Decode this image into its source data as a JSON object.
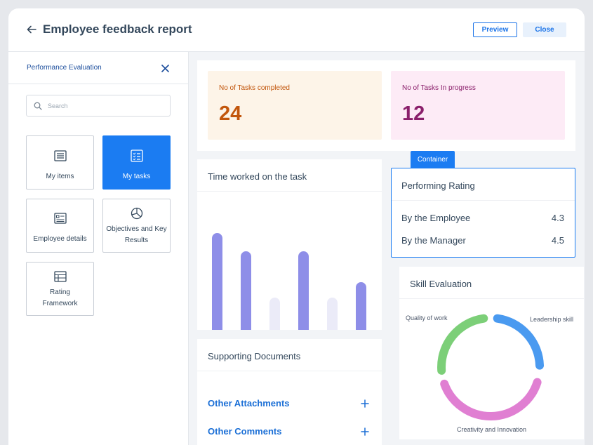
{
  "header": {
    "title": "Employee feedback report",
    "preview_label": "Preview",
    "close_label": "Close"
  },
  "sidebar": {
    "title": "Performance Evaluation",
    "search_placeholder": "Search",
    "tiles": [
      {
        "label": "My items",
        "icon": "list-icon",
        "active": false
      },
      {
        "label": "My tasks",
        "icon": "checklist-icon",
        "active": true
      },
      {
        "label": "Employee details",
        "icon": "id-card-icon",
        "active": false
      },
      {
        "label": "Objectives and Key Results",
        "icon": "pie-chart-icon",
        "active": false
      },
      {
        "label": "Rating Framework",
        "icon": "table-icon",
        "active": false
      }
    ]
  },
  "stats": [
    {
      "label": "No of Tasks completed",
      "value": "24",
      "color": "#c2560c",
      "bg": "#fdf4e8"
    },
    {
      "label": "No of Tasks In progress",
      "value": "12",
      "color": "#8a1f6b",
      "bg": "#fdebf6"
    }
  ],
  "time_worked": {
    "title": "Time worked on the task",
    "bars": [
      {
        "value": 1.0,
        "color": "#8e8ee8"
      },
      {
        "value": 0.81,
        "color": "#8e8ee8"
      },
      {
        "value": 0.33,
        "color": "#ebebf8"
      },
      {
        "value": 0.81,
        "color": "#8e8ee8"
      },
      {
        "value": 0.33,
        "color": "#ebebf8"
      },
      {
        "value": 0.49,
        "color": "#8e8ee8"
      }
    ]
  },
  "container_tag": "Container",
  "rating": {
    "title": "Performing Rating",
    "rows": [
      {
        "label": "By the Employee",
        "value": "4.3"
      },
      {
        "label": "By the Manager",
        "value": "4.5"
      }
    ]
  },
  "skill": {
    "title": "Skill Evaluation",
    "segments": [
      {
        "label": "Quality of work",
        "color": "#7ccf78"
      },
      {
        "label": "Leadership skill",
        "color": "#4a9af0"
      },
      {
        "label": "Creativity and Innovation",
        "color": "#e07fd2"
      }
    ]
  },
  "documents": {
    "title": "Supporting Documents",
    "links": [
      "Other Attachments",
      "Other Comments"
    ]
  }
}
